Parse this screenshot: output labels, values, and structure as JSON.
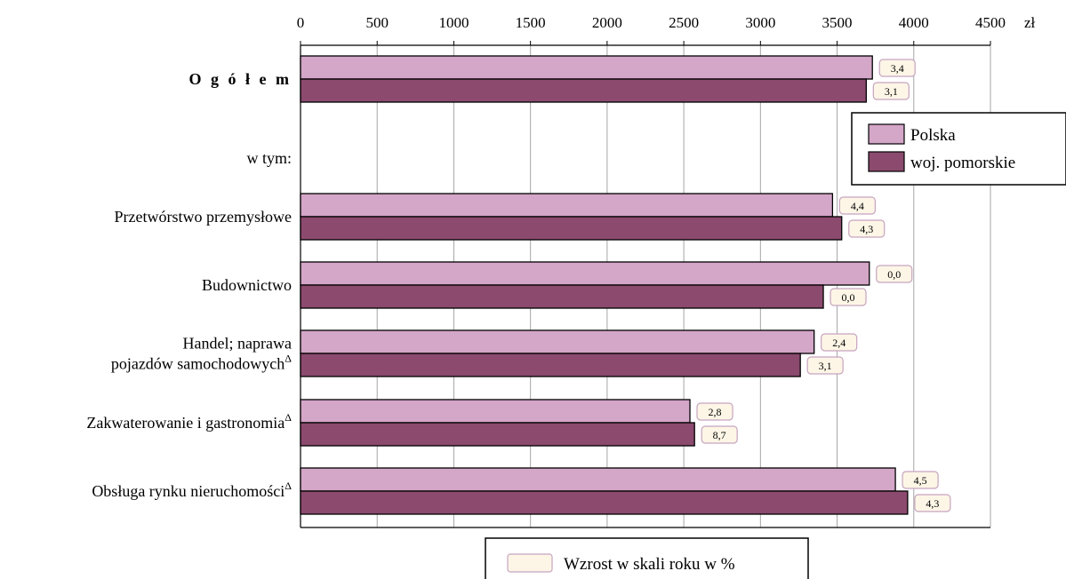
{
  "chart_data": {
    "type": "bar",
    "orientation": "horizontal",
    "x_unit": "zł",
    "xlim": [
      0,
      4500
    ],
    "x_ticks": [
      0,
      500,
      1000,
      1500,
      2000,
      2500,
      3000,
      3500,
      4000,
      4500
    ],
    "grid": true,
    "categories": [
      "O g ó ł e m",
      "w tym:",
      "Przetwórstwo przemysłowe",
      "Budownictwo",
      "Handel; naprawa pojazdów samochodowych^Δ",
      "Zakwaterowanie i gastronomia^Δ",
      "Obsługa rynku nieruchomości^Δ"
    ],
    "category_lines": [
      [
        "O g ó ł e m"
      ],
      [
        "w tym:"
      ],
      [
        "Przetwórstwo przemysłowe"
      ],
      [
        "Budownictwo"
      ],
      [
        "Handel; naprawa",
        "pojazdów samochodowych"
      ],
      [
        "Zakwaterowanie i gastronomia"
      ],
      [
        "Obsługa rynku nieruchomości"
      ]
    ],
    "category_superscripts": [
      "",
      "",
      "",
      "",
      "Δ",
      "Δ",
      "Δ"
    ],
    "series": [
      {
        "name": "Polska",
        "color": "#d4a6c8",
        "values": [
          3730,
          null,
          3470,
          3710,
          3350,
          2540,
          3880
        ],
        "growth_labels": [
          "3,4",
          null,
          "4,4",
          "0,0",
          "2,4",
          "2,8",
          "4,5"
        ]
      },
      {
        "name": "woj. pomorskie",
        "color": "#8b4a6e",
        "values": [
          3690,
          null,
          3530,
          3410,
          3260,
          2570,
          3960
        ],
        "growth_labels": [
          "3,1",
          null,
          "4,3",
          "0,0",
          "3,1",
          "8,7",
          "4,3"
        ]
      }
    ],
    "growth_legend": "Wzrost w skali roku w %",
    "growth_box_fill": "#fdf6e6",
    "growth_box_stroke": "#c7a3c0",
    "legend_position": "right"
  }
}
